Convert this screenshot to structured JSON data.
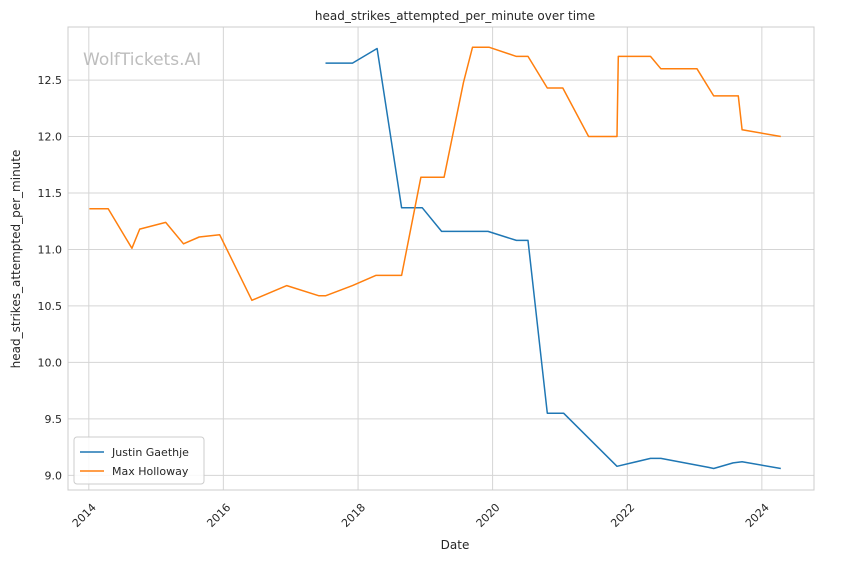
{
  "chart_data": {
    "type": "line",
    "title": "head_strikes_attempted_per_minute over time",
    "xlabel": "Date",
    "ylabel": "head_strikes_attempted_per_minute",
    "watermark": "WolfTickets.AI",
    "xlim": [
      "2013-09-10",
      "2024-10-10"
    ],
    "ylim": [
      8.87,
      12.97
    ],
    "x_ticks": [
      "2014",
      "2016",
      "2018",
      "2020",
      "2022",
      "2024"
    ],
    "y_ticks": [
      "9.0",
      "9.5",
      "10.0",
      "10.5",
      "11.0",
      "11.5",
      "12.0",
      "12.5"
    ],
    "grid": true,
    "legend_position": "lower-left",
    "series": [
      {
        "name": "Justin Gaethje",
        "color": "#1f77b4",
        "x": [
          "2017-07-08",
          "2017-12-02",
          "2018-04-14",
          "2018-08-25",
          "2018-12-15",
          "2019-03-30",
          "2019-09-14",
          "2019-12-07",
          "2020-05-09",
          "2020-07-11",
          "2020-10-24",
          "2021-01-20",
          "2021-11-06",
          "2022-05-07",
          "2022-07-02",
          "2023-03-18",
          "2023-04-15",
          "2023-07-29",
          "2023-09-16",
          "2024-04-13"
        ],
        "y": [
          12.65,
          12.65,
          12.78,
          11.37,
          11.37,
          11.16,
          11.16,
          11.16,
          11.08,
          11.08,
          9.55,
          9.55,
          9.08,
          9.15,
          9.15,
          9.07,
          9.06,
          9.11,
          9.12,
          9.06
        ]
      },
      {
        "name": "Max Holloway",
        "color": "#ff7f0e",
        "x": [
          "2014-01-04",
          "2014-04-16",
          "2014-08-23",
          "2014-10-04",
          "2015-02-22",
          "2015-05-30",
          "2015-08-23",
          "2015-12-12",
          "2016-06-04",
          "2016-12-10",
          "2017-06-03",
          "2017-07-08",
          "2017-12-02",
          "2018-04-07",
          "2018-08-25",
          "2018-12-08",
          "2019-04-13",
          "2019-07-27",
          "2019-09-14",
          "2019-12-14",
          "2020-05-09",
          "2020-07-11",
          "2020-10-24",
          "2021-01-16",
          "2021-06-05",
          "2021-11-06",
          "2021-11-13",
          "2022-05-07",
          "2022-07-02",
          "2023-01-14",
          "2023-04-15",
          "2023-08-26",
          "2023-09-16",
          "2024-04-13"
        ],
        "y": [
          11.36,
          11.36,
          11.01,
          11.18,
          11.24,
          11.05,
          11.11,
          11.13,
          10.55,
          10.68,
          10.59,
          10.59,
          10.68,
          10.77,
          10.77,
          11.64,
          11.64,
          12.48,
          12.79,
          12.79,
          12.71,
          12.71,
          12.43,
          12.43,
          12.0,
          12.0,
          12.71,
          12.71,
          12.6,
          12.6,
          12.36,
          12.36,
          12.06,
          12.0
        ]
      }
    ]
  }
}
